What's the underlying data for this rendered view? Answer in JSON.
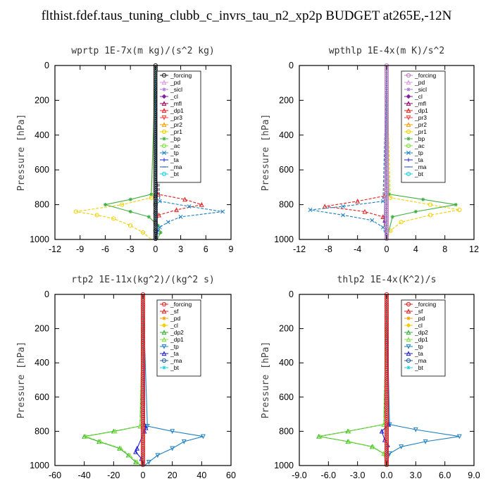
{
  "title": "flthist.fdef.taus_tuning_clubb_c_invrs_tau_n2_xp2p  BUDGET at265E,-12N",
  "chart_data": [
    {
      "type": "line",
      "title": "wprtp   1E-7x(m kg)/(s^2 kg)",
      "ylabel": "Pressure [hPa]",
      "xlim": [
        -12,
        9
      ],
      "ylim": [
        1000,
        0
      ],
      "xticks": [
        -12,
        -9,
        -6,
        -3,
        0,
        3,
        6,
        9
      ],
      "xtick_labels": [
        "-12",
        "-9",
        "-6",
        "-3",
        "0",
        "3",
        "6",
        "9"
      ],
      "yticks": [
        0,
        200,
        400,
        600,
        800,
        1000
      ],
      "series": [
        {
          "name": "_forcing",
          "color": "#202020",
          "y": [
            0,
            750,
            800,
            850,
            900,
            950,
            1000
          ],
          "x": [
            0,
            0,
            0,
            0,
            0,
            0,
            0
          ]
        },
        {
          "name": "_pd",
          "color": "#d79bd7",
          "y": [
            0,
            1000
          ],
          "x": [
            0,
            0
          ]
        },
        {
          "name": "_sicl",
          "color": "#a77bd7",
          "y": [
            0,
            1000
          ],
          "x": [
            0,
            0
          ]
        },
        {
          "name": "_cl",
          "color": "#8a1ca3",
          "y": [
            0,
            1000
          ],
          "x": [
            0,
            0
          ]
        },
        {
          "name": "_mfl",
          "color": "#900060",
          "y": [
            0,
            1000
          ],
          "x": [
            0,
            0
          ]
        },
        {
          "name": "_dp1",
          "color": "#e02020",
          "y": [
            0,
            740,
            770,
            800,
            830,
            860,
            900,
            1000
          ],
          "x": [
            0,
            0.3,
            3.5,
            5.5,
            2.5,
            0.4,
            0,
            0
          ]
        },
        {
          "name": "_pr3",
          "color": "#f04040",
          "y": [
            0,
            1000
          ],
          "x": [
            0,
            0
          ]
        },
        {
          "name": "_pr2",
          "color": "#f0a000",
          "y": [
            0,
            1000
          ],
          "x": [
            0,
            0
          ]
        },
        {
          "name": "_pr1",
          "color": "#f0d000",
          "y": [
            0,
            760,
            800,
            840,
            860,
            880,
            920,
            960,
            1000
          ],
          "x": [
            0,
            -0.5,
            -4,
            -9.5,
            -7,
            -5,
            -3,
            -1.5,
            -0.5
          ]
        },
        {
          "name": "_bp",
          "color": "#40b040",
          "y": [
            0,
            740,
            770,
            800,
            840,
            870,
            920,
            960,
            1000
          ],
          "x": [
            0,
            -0.5,
            -3,
            -6,
            -3,
            -0.8,
            0.3,
            0.6,
            0.2
          ]
        },
        {
          "name": "_ac",
          "color": "#80e040",
          "y": [
            0,
            1000
          ],
          "x": [
            0,
            0
          ]
        },
        {
          "name": "_tp",
          "color": "#2080c0",
          "y": [
            0,
            780,
            810,
            840,
            870,
            900,
            930,
            960,
            1000
          ],
          "x": [
            0,
            0.5,
            4,
            8,
            3,
            1.5,
            0.5,
            0.2,
            0
          ]
        },
        {
          "name": "_ta",
          "color": "#2020d0",
          "y": [
            0,
            950,
            1000
          ],
          "x": [
            0,
            0.2,
            0.1
          ]
        },
        {
          "name": "_ma",
          "color": "#2060a0",
          "y": [
            0,
            1000
          ],
          "x": [
            0,
            0
          ]
        },
        {
          "name": "_bt",
          "color": "#20d0e0",
          "y": [
            0,
            1000
          ],
          "x": [
            0,
            0
          ]
        }
      ]
    },
    {
      "type": "line",
      "title": "wpthlp   1E-4x(m K)/s^2",
      "ylabel": "Pressure [hPa]",
      "xlim": [
        -12,
        12
      ],
      "ylim": [
        1000,
        0
      ],
      "xticks": [
        -12,
        -8,
        -4,
        0,
        4,
        8,
        12
      ],
      "xtick_labels": [
        "-12",
        "-8",
        "-4",
        "0",
        "4",
        "8",
        "12"
      ],
      "yticks": [
        0,
        200,
        400,
        600,
        800,
        1000
      ],
      "series": [
        {
          "name": "_forcing",
          "color": "#c080c0",
          "y": [
            0,
            1000
          ],
          "x": [
            0,
            0
          ]
        },
        {
          "name": "_pd",
          "color": "#d79bd7",
          "y": [
            0,
            1000
          ],
          "x": [
            0,
            0
          ]
        },
        {
          "name": "_sicl",
          "color": "#a77bd7",
          "y": [
            0,
            1000
          ],
          "x": [
            0,
            0
          ]
        },
        {
          "name": "_cl",
          "color": "#8a1ca3",
          "y": [
            0,
            1000
          ],
          "x": [
            0,
            0
          ]
        },
        {
          "name": "_mfl",
          "color": "#900060",
          "y": [
            0,
            1000
          ],
          "x": [
            0,
            0
          ]
        },
        {
          "name": "_dp1",
          "color": "#e02020",
          "y": [
            0,
            750,
            780,
            810,
            840,
            870,
            1000
          ],
          "x": [
            0,
            -0.3,
            -4,
            -8.5,
            -3,
            -0.5,
            0
          ]
        },
        {
          "name": "_pr3",
          "color": "#f04040",
          "y": [
            0,
            1000
          ],
          "x": [
            0,
            0
          ]
        },
        {
          "name": "_pr2",
          "color": "#f0a000",
          "y": [
            0,
            1000
          ],
          "x": [
            0,
            0
          ]
        },
        {
          "name": "_pr1",
          "color": "#f0d000",
          "y": [
            0,
            760,
            800,
            830,
            860,
            900,
            950,
            1000
          ],
          "x": [
            0,
            0.5,
            6,
            10,
            6,
            2,
            0.5,
            0
          ]
        },
        {
          "name": "_bp",
          "color": "#40b040",
          "y": [
            0,
            740,
            770,
            800,
            840,
            870,
            1000
          ],
          "x": [
            0,
            0.3,
            5,
            9.5,
            4,
            0.8,
            0
          ]
        },
        {
          "name": "_ac",
          "color": "#80e040",
          "y": [
            0,
            1000
          ],
          "x": [
            0,
            0
          ]
        },
        {
          "name": "_tp",
          "color": "#2080c0",
          "y": [
            0,
            780,
            810,
            830,
            860,
            890,
            930,
            1000
          ],
          "x": [
            0,
            -0.5,
            -6,
            -10.5,
            -6,
            -2,
            -0.5,
            0
          ]
        },
        {
          "name": "_ta",
          "color": "#2020d0",
          "y": [
            0,
            900,
            1000
          ],
          "x": [
            0,
            -0.3,
            0
          ]
        },
        {
          "name": "_ma",
          "color": "#2060a0",
          "y": [
            0,
            1000
          ],
          "x": [
            0,
            0
          ]
        },
        {
          "name": "_bt",
          "color": "#20d0e0",
          "y": [
            0,
            1000
          ],
          "x": [
            0,
            0
          ]
        }
      ]
    },
    {
      "type": "line",
      "title": "rtp2   1E-11x(kg^2)/(kg^2 s)",
      "ylabel": "Pressure [hPa]",
      "xlim": [
        -60,
        60
      ],
      "ylim": [
        1000,
        0
      ],
      "xticks": [
        -60,
        -40,
        -20,
        0,
        20,
        40,
        60
      ],
      "xtick_labels": [
        "-60",
        "-40",
        "-20",
        "0",
        "20",
        "40",
        "60"
      ],
      "yticks": [
        0,
        200,
        400,
        600,
        800,
        1000
      ],
      "series": [
        {
          "name": "_forcing",
          "color": "#e02020",
          "y": [
            0,
            1000
          ],
          "x": [
            0,
            0
          ]
        },
        {
          "name": "_sf",
          "color": "#e02020",
          "y": [
            0,
            1000
          ],
          "x": [
            0,
            0
          ]
        },
        {
          "name": "_pd",
          "color": "#f0a000",
          "y": [
            0,
            1000
          ],
          "x": [
            0,
            0
          ]
        },
        {
          "name": "_cl",
          "color": "#f0d000",
          "y": [
            0,
            1000
          ],
          "x": [
            0,
            0
          ]
        },
        {
          "name": "_dp2",
          "color": "#30b030",
          "y": [
            0,
            770,
            800,
            830,
            860,
            900,
            940,
            980,
            1000
          ],
          "x": [
            0,
            -2,
            -20,
            -40,
            -30,
            -16,
            -10,
            -5,
            -1
          ]
        },
        {
          "name": "_dp1",
          "color": "#80e040",
          "y": [
            0,
            770,
            800,
            830,
            860,
            900,
            940,
            980,
            1000
          ],
          "x": [
            0,
            -2,
            -19,
            -39,
            -29,
            -15,
            -9,
            -4,
            -1
          ]
        },
        {
          "name": "_tp",
          "color": "#2080c0",
          "y": [
            0,
            770,
            800,
            830,
            860,
            900,
            940,
            980,
            1000
          ],
          "x": [
            0,
            3,
            20,
            41,
            28,
            20,
            10,
            4,
            1
          ]
        },
        {
          "name": "_ta",
          "color": "#2020d0",
          "y": [
            0,
            760,
            780,
            800,
            900,
            920,
            960,
            1000
          ],
          "x": [
            0,
            1,
            2,
            1,
            -4,
            -5,
            -1,
            0
          ]
        },
        {
          "name": "_ma",
          "color": "#2060a0",
          "y": [
            0,
            1000
          ],
          "x": [
            0,
            0
          ]
        },
        {
          "name": "_bt",
          "color": "#20d0e0",
          "y": [
            0,
            1000
          ],
          "x": [
            0,
            0
          ]
        }
      ]
    },
    {
      "type": "line",
      "title": "thlp2   1E-4x(K^2)/s",
      "ylabel": "Pressure [hPa]",
      "xlim": [
        -9,
        9
      ],
      "ylim": [
        1000,
        0
      ],
      "xticks": [
        -9,
        -6,
        -3,
        0,
        3,
        6,
        9
      ],
      "xtick_labels": [
        "-9.0",
        "-6.0",
        "-3.0",
        "0.0",
        "3.0",
        "6.0",
        "9.0"
      ],
      "yticks": [
        0,
        200,
        400,
        600,
        800,
        1000
      ],
      "series": [
        {
          "name": "_forcing",
          "color": "#e02020",
          "y": [
            0,
            1000
          ],
          "x": [
            0,
            0
          ]
        },
        {
          "name": "_sf",
          "color": "#e02020",
          "y": [
            0,
            1000
          ],
          "x": [
            0,
            0
          ]
        },
        {
          "name": "_pd",
          "color": "#f0a000",
          "y": [
            0,
            1000
          ],
          "x": [
            0,
            0
          ]
        },
        {
          "name": "_cl",
          "color": "#f0d000",
          "y": [
            0,
            1000
          ],
          "x": [
            0,
            0
          ]
        },
        {
          "name": "_dp2",
          "color": "#30b030",
          "y": [
            0,
            760,
            800,
            830,
            860,
            890,
            930,
            1000
          ],
          "x": [
            0,
            -0.3,
            -4,
            -7,
            -4,
            -1.5,
            -0.3,
            0
          ]
        },
        {
          "name": "_dp1",
          "color": "#80e040",
          "y": [
            0,
            760,
            800,
            830,
            860,
            890,
            930,
            1000
          ],
          "x": [
            0,
            -0.3,
            -3.9,
            -6.9,
            -3.9,
            -1.4,
            -0.3,
            0
          ]
        },
        {
          "name": "_tp",
          "color": "#2080c0",
          "y": [
            0,
            760,
            790,
            830,
            860,
            890,
            930,
            1000
          ],
          "x": [
            0,
            0.3,
            3,
            7.5,
            4,
            1.5,
            0.3,
            0
          ]
        },
        {
          "name": "_ta",
          "color": "#2020d0",
          "y": [
            0,
            760,
            800,
            850,
            880,
            1000
          ],
          "x": [
            0,
            0.2,
            -0.5,
            -0.2,
            0.1,
            0
          ]
        },
        {
          "name": "_ma",
          "color": "#2060a0",
          "y": [
            0,
            1000
          ],
          "x": [
            0,
            0
          ]
        },
        {
          "name": "_bt",
          "color": "#20d0e0",
          "y": [
            0,
            1000
          ],
          "x": [
            0,
            0
          ]
        }
      ]
    }
  ]
}
